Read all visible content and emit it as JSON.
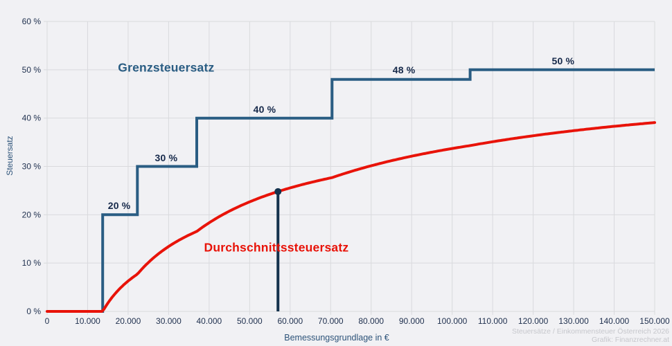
{
  "colors": {
    "background": "#f1f1f4",
    "grid": "#d9dadd",
    "tick_text": "#1e2f4d",
    "step_label_text": "#16294a",
    "axis_title": "#2d5379",
    "footer_text": "#c6c7cc"
  },
  "chart_data": {
    "type": "line",
    "title": "",
    "xlabel": "Bemessungsgrundlage in €",
    "ylabel": "Steuersatz",
    "xlim": [
      0,
      150000
    ],
    "ylim": [
      0,
      60
    ],
    "grid": true,
    "legend_position": "inline-labels",
    "x_ticks": [
      0,
      10000,
      20000,
      30000,
      40000,
      50000,
      60000,
      70000,
      80000,
      90000,
      100000,
      110000,
      120000,
      130000,
      140000,
      150000
    ],
    "x_tick_labels": [
      "0",
      "10.000",
      "20.000",
      "30.000",
      "40.000",
      "50.000",
      "60.000",
      "70.000",
      "80.000",
      "90.000",
      "100.000",
      "110.000",
      "120.000",
      "130.000",
      "140.000",
      "150.000"
    ],
    "y_ticks": [
      0,
      10,
      20,
      30,
      40,
      50,
      60
    ],
    "y_tick_labels": [
      "0 %",
      "10 %",
      "20 %",
      "30 %",
      "40 %",
      "50 %",
      "60 %"
    ],
    "series": [
      {
        "name": "Grenzsteuersatz",
        "type": "step",
        "color": "#2a5d83",
        "line_width": 4,
        "brackets": [
          {
            "from": 0,
            "to": 13714,
            "rate": 0
          },
          {
            "from": 13714,
            "to": 22282,
            "rate": 20
          },
          {
            "from": 22282,
            "to": 36941,
            "rate": 30
          },
          {
            "from": 36941,
            "to": 70347,
            "rate": 40
          },
          {
            "from": 70347,
            "to": 104441,
            "rate": 48
          },
          {
            "from": 104441,
            "to": 150000,
            "rate": 50
          }
        ],
        "step_labels": [
          {
            "text": "20 %",
            "x": 17800,
            "y": 21.9
          },
          {
            "text": "30 %",
            "x": 29400,
            "y": 31.8
          },
          {
            "text": "40 %",
            "x": 53700,
            "y": 41.8
          },
          {
            "text": "48 %",
            "x": 88100,
            "y": 50.0
          },
          {
            "text": "50 %",
            "x": 127400,
            "y": 51.8
          }
        ],
        "series_label": {
          "text": "Grenzsteuersatz",
          "x": 29400,
          "y": 50.4
        }
      },
      {
        "name": "Durchschnittssteuersatz",
        "type": "curve",
        "color": "#e81309",
        "line_width": 4,
        "points": [
          [
            13714,
            0
          ],
          [
            20000,
            6.3
          ],
          [
            30000,
            13.4
          ],
          [
            40000,
            18.3
          ],
          [
            50000,
            22.7
          ],
          [
            57000,
            24.8
          ],
          [
            60000,
            25.6
          ],
          [
            70000,
            27.6
          ],
          [
            80000,
            30.1
          ],
          [
            90000,
            32.1
          ],
          [
            100000,
            33.7
          ],
          [
            110000,
            35.1
          ],
          [
            120000,
            36.4
          ],
          [
            130000,
            37.4
          ],
          [
            140000,
            38.3
          ],
          [
            150000,
            39.1
          ]
        ],
        "series_label": {
          "text": "Durchschnittssteuersatz",
          "x": 56600,
          "y": 13.2
        }
      }
    ],
    "marker": {
      "x": 57000,
      "y": 24.8,
      "color": "#14324d",
      "radius": 5,
      "line_width": 4
    },
    "source_line1": "Steuersätze / Einkommensteuer Österreich 2026",
    "source_line2": "Grafik: Finanzrechner.at"
  }
}
